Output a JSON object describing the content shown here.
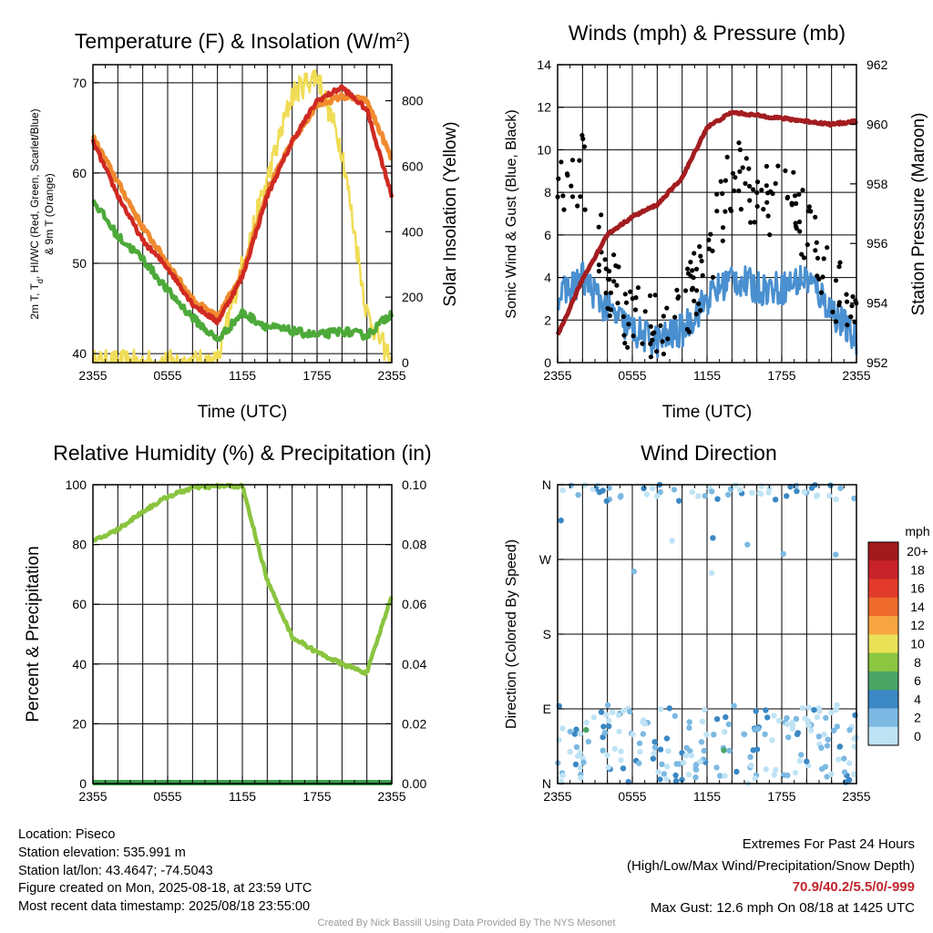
{
  "temp_panel": {
    "title": "Temperature (F) & Insolation (W/m",
    "title_sup": "2",
    "title_end": ")",
    "ylabel_left_line1": "2m T, T",
    "ylabel_left_sub": "d",
    "ylabel_left_line1b": ", HI/WC (Red, Green, Scarlet/Blue)",
    "ylabel_left_line2": "& 9m T (Orange)",
    "ylabel_right": "Solar Insolation (Yellow)",
    "xlabel": "Time (UTC)",
    "xticks": [
      "2355",
      "0555",
      "1155",
      "1755",
      "2355"
    ],
    "yticks_left": [
      "40",
      "50",
      "60",
      "70"
    ],
    "yticks_right": [
      "0",
      "200",
      "400",
      "600",
      "800"
    ]
  },
  "wind_panel": {
    "title": "Winds (mph) & Pressure (mb)",
    "ylabel_left": "Sonic Wind & Gust (Blue, Black)",
    "ylabel_right": "Station Pressure (Maroon)",
    "xlabel": "Time (UTC)",
    "xticks": [
      "2355",
      "0555",
      "1155",
      "1755",
      "2355"
    ],
    "yticks_left": [
      "0",
      "2",
      "4",
      "6",
      "8",
      "10",
      "12",
      "14"
    ],
    "yticks_right": [
      "952",
      "954",
      "956",
      "958",
      "960",
      "962"
    ]
  },
  "rh_panel": {
    "title": "Relative Humidity (%) & Precipitation (in)",
    "ylabel_left": "Percent & Precipitation",
    "xticks": [
      "2355",
      "0555",
      "1155",
      "1755",
      "2355"
    ],
    "yticks_left": [
      "0",
      "20",
      "40",
      "60",
      "80",
      "100"
    ],
    "yticks_right": [
      "0.00",
      "0.02",
      "0.04",
      "0.06",
      "0.08",
      "0.10"
    ]
  },
  "dir_panel": {
    "title": "Wind Direction",
    "ylabel_left": "Direction (Colored By Speed)",
    "xticks": [
      "2355",
      "0555",
      "1155",
      "1755",
      "2355"
    ],
    "yticks_left": [
      "N",
      "E",
      "S",
      "W",
      "N"
    ],
    "legend_title": "mph",
    "legend_labels": [
      "20+",
      "18",
      "16",
      "14",
      "12",
      "10",
      "8",
      "6",
      "4",
      "2",
      "0"
    ],
    "legend_colors": [
      "#a31a1c",
      "#c8232a",
      "#e23a2b",
      "#ef6a2d",
      "#f7a541",
      "#e9e156",
      "#8cc640",
      "#4aa564",
      "#3b88c4",
      "#7cb9e3",
      "#bfe3f5"
    ]
  },
  "info": {
    "location": "Location: Piseco",
    "elevation": "Station elevation: 535.991 m",
    "latlon": "Station lat/lon: 43.4647; -74.5043",
    "created": "Figure created on Mon, 2025-08-18, at 23:59 UTC",
    "recent": "Most recent data timestamp: 2025/08/18 23:55:00"
  },
  "extremes": {
    "title": "Extremes For Past 24 Hours",
    "subtitle": "(High/Low/Max Wind/Precipitation/Snow Depth)",
    "values": "70.9/40.2/5.5/0/-999",
    "gust": "Max Gust: 12.6 mph On 08/18 at 1425 UTC"
  },
  "credit": "Created By Nick Bassill Using Data Provided By The NYS Mesonet",
  "chart_data": [
    {
      "type": "line",
      "title": "Temperature (F) & Insolation (W/m2)",
      "xlabel": "Time (UTC)",
      "x": [
        "2355",
        "0155",
        "0355",
        "0555",
        "0755",
        "0955",
        "1155",
        "1355",
        "1555",
        "1755",
        "1955",
        "2155",
        "2355"
      ],
      "ylim_left": [
        39,
        72
      ],
      "ylim_right": [
        0,
        910
      ],
      "series": [
        {
          "name": "Red",
          "axis": "left",
          "color": "#cf2a22",
          "values": [
            63.5,
            57.5,
            52.5,
            49.5,
            45.5,
            43.5,
            48.5,
            57.5,
            63.5,
            68.0,
            69.5,
            67.0,
            57.5
          ]
        },
        {
          "name": "Green",
          "axis": "left",
          "color": "#4daa3a",
          "values": [
            57.0,
            53.0,
            50.5,
            47.0,
            44.0,
            41.5,
            44.5,
            43.0,
            42.5,
            42.0,
            42.5,
            42.0,
            44.5
          ]
        },
        {
          "name": "Orange",
          "axis": "left",
          "color": "#f08a2e",
          "values": [
            64.0,
            59.0,
            54.0,
            50.0,
            46.0,
            44.0,
            49.0,
            58.0,
            63.5,
            67.5,
            68.5,
            68.0,
            61.5
          ]
        },
        {
          "name": "Yellow",
          "axis": "right",
          "color": "#f0dc55",
          "values": [
            0,
            0,
            0,
            0,
            0,
            0,
            300,
            560,
            820,
            880,
            650,
            150,
            0
          ]
        }
      ]
    },
    {
      "type": "line",
      "title": "Winds (mph) & Pressure (mb)",
      "xlabel": "Time (UTC)",
      "x": [
        "2355",
        "0155",
        "0355",
        "0555",
        "0755",
        "0955",
        "1155",
        "1355",
        "1555",
        "1755",
        "1955",
        "2155",
        "2355"
      ],
      "ylim_left": [
        0,
        14
      ],
      "ylim_right": [
        952,
        962
      ],
      "series": [
        {
          "name": "Blue",
          "axis": "left",
          "color": "#4a90d0",
          "values": [
            3.0,
            4.0,
            2.5,
            1.5,
            1.0,
            1.5,
            3.0,
            4.0,
            3.5,
            3.5,
            4.0,
            2.5,
            1.0
          ]
        },
        {
          "name": "Black",
          "axis": "left",
          "color": "#000000",
          "type": "scatter",
          "values": [
            8.5,
            9.0,
            4.0,
            2.0,
            1.5,
            2.5,
            4.5,
            9.0,
            7.5,
            8.0,
            6.5,
            4.0,
            1.5
          ]
        },
        {
          "name": "Maroon",
          "axis": "right",
          "color": "#a31d20",
          "values": [
            952.9,
            954.8,
            956.3,
            956.9,
            957.3,
            958.2,
            959.9,
            960.4,
            960.3,
            960.2,
            960.1,
            960.0,
            960.1
          ]
        }
      ]
    },
    {
      "type": "line",
      "title": "Relative Humidity (%) & Precipitation (in)",
      "x": [
        "2355",
        "0155",
        "0355",
        "0555",
        "0755",
        "0955",
        "1155",
        "1355",
        "1555",
        "1755",
        "1955",
        "2155",
        "2355"
      ],
      "ylim_left": [
        0,
        100
      ],
      "ylim_right": [
        0.0,
        0.1
      ],
      "series": [
        {
          "name": "Humidity",
          "axis": "left",
          "color": "#8ac43f",
          "values": [
            81,
            85,
            91,
            96,
            99,
            99.5,
            99.5,
            68,
            49,
            44,
            40,
            37,
            63
          ]
        },
        {
          "name": "Precipitation",
          "axis": "right",
          "color": "#3aa14a",
          "values": [
            0,
            0,
            0,
            0,
            0,
            0,
            0,
            0,
            0,
            0,
            0,
            0,
            0
          ]
        }
      ]
    },
    {
      "type": "scatter",
      "title": "Wind Direction",
      "ylabel": "Direction (Colored By Speed)",
      "x": [
        "2355",
        "0555",
        "1155",
        "1755",
        "2355"
      ],
      "ylim": [
        0,
        360
      ],
      "yticks": [
        "N",
        "E",
        "S",
        "W",
        "N"
      ],
      "colorbar_title": "mph",
      "colorbar_levels": [
        0,
        2,
        4,
        6,
        8,
        10,
        12,
        14,
        16,
        18,
        20
      ]
    }
  ]
}
